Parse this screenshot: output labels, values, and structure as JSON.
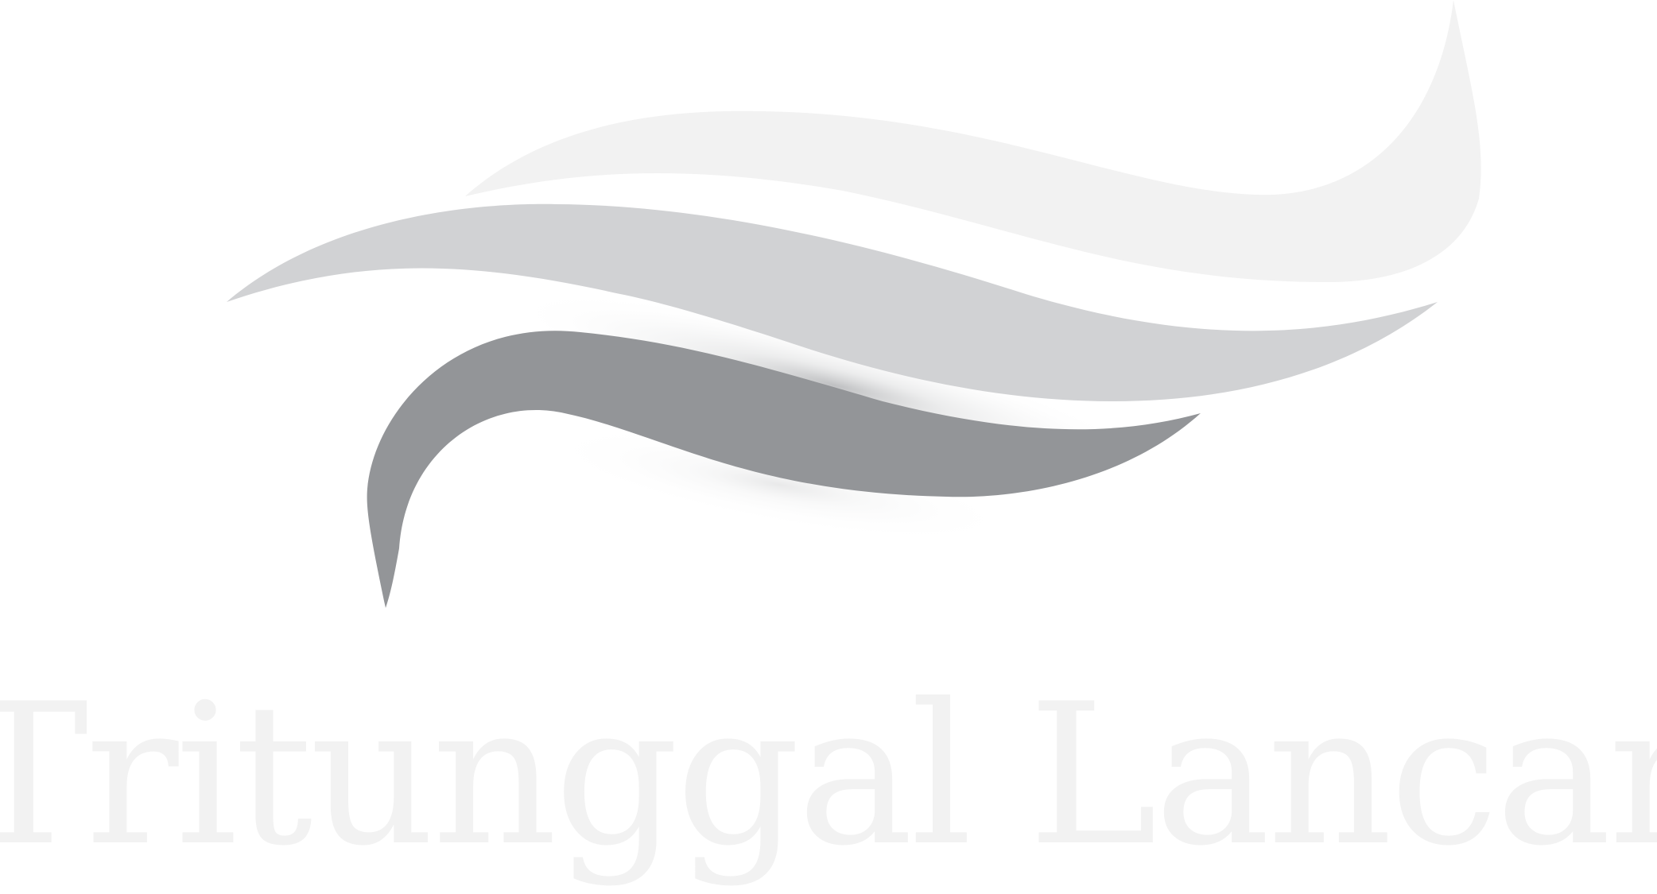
{
  "brand": {
    "name": "Tritunggal Lancar",
    "colors": {
      "top_swoosh": "#f2f2f2",
      "middle_swoosh": "#d1d2d4",
      "bottom_swoosh": "#939598",
      "wordmark": "#f2f2f2",
      "shadow": "#b8b9bb"
    }
  }
}
